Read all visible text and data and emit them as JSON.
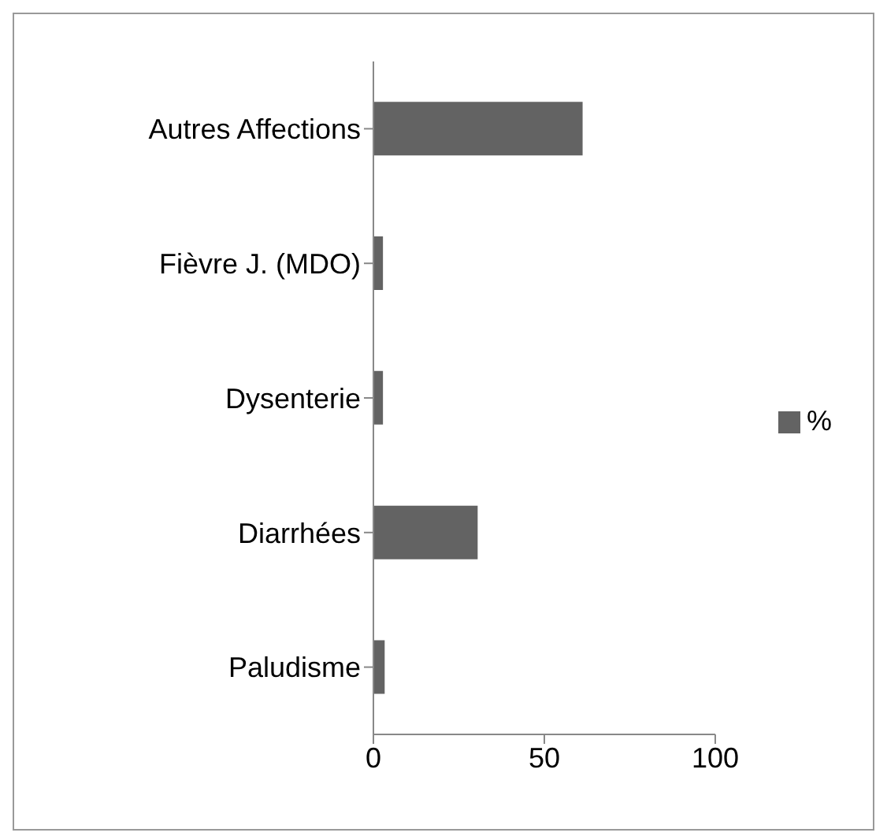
{
  "chart_data": {
    "type": "bar",
    "orientation": "horizontal",
    "categories": [
      "Autres Affections",
      "Fièvre J. (MDO)",
      "Dysenterie",
      "Diarrhées",
      "Paludisme"
    ],
    "series": [
      {
        "name": "%",
        "color": "#636363",
        "values": [
          61.2,
          2.8,
          2.8,
          30.5,
          3.3
        ]
      }
    ],
    "xlim": [
      0,
      100
    ],
    "xticks": [
      0,
      50,
      100
    ],
    "legend": "right"
  }
}
